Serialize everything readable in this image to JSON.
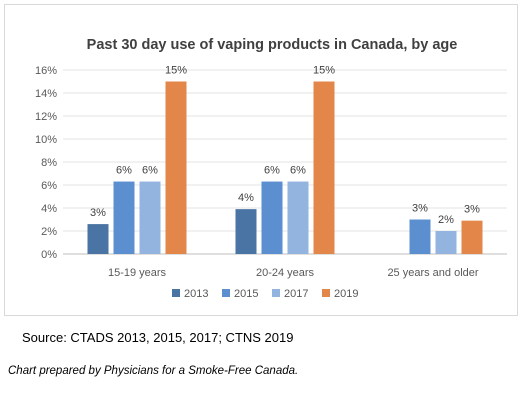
{
  "chart_data": {
    "type": "bar",
    "title": "Past 30 day use of vaping products in Canada, by age",
    "xlabel": "",
    "ylabel": "",
    "categories": [
      "15-19 years",
      "20-24 years",
      "25 years and older"
    ],
    "ylim": [
      0,
      16
    ],
    "yticks": [
      "0%",
      "2%",
      "4%",
      "6%",
      "8%",
      "10%",
      "12%",
      "14%",
      "16%"
    ],
    "grid": true,
    "legend_position": "bottom",
    "series": [
      {
        "name": "2013",
        "color": "#4a74a4",
        "values": [
          2.6,
          3.9,
          null
        ],
        "labels": [
          "3%",
          "4%",
          ""
        ]
      },
      {
        "name": "2015",
        "color": "#5b8fd0",
        "values": [
          6.3,
          6.3,
          3.0
        ],
        "labels": [
          "6%",
          "6%",
          "3%"
        ]
      },
      {
        "name": "2017",
        "color": "#92b4de",
        "values": [
          6.3,
          6.3,
          2.0
        ],
        "labels": [
          "6%",
          "6%",
          "2%"
        ]
      },
      {
        "name": "2019",
        "color": "#e3864a",
        "values": [
          15.0,
          15.0,
          2.9
        ],
        "labels": [
          "15%",
          "15%",
          "3%"
        ]
      }
    ]
  },
  "source": "Source: CTADS 2013, 2015, 2017; CTNS 2019",
  "credit": "Chart prepared by Physicians for a Smoke-Free Canada."
}
